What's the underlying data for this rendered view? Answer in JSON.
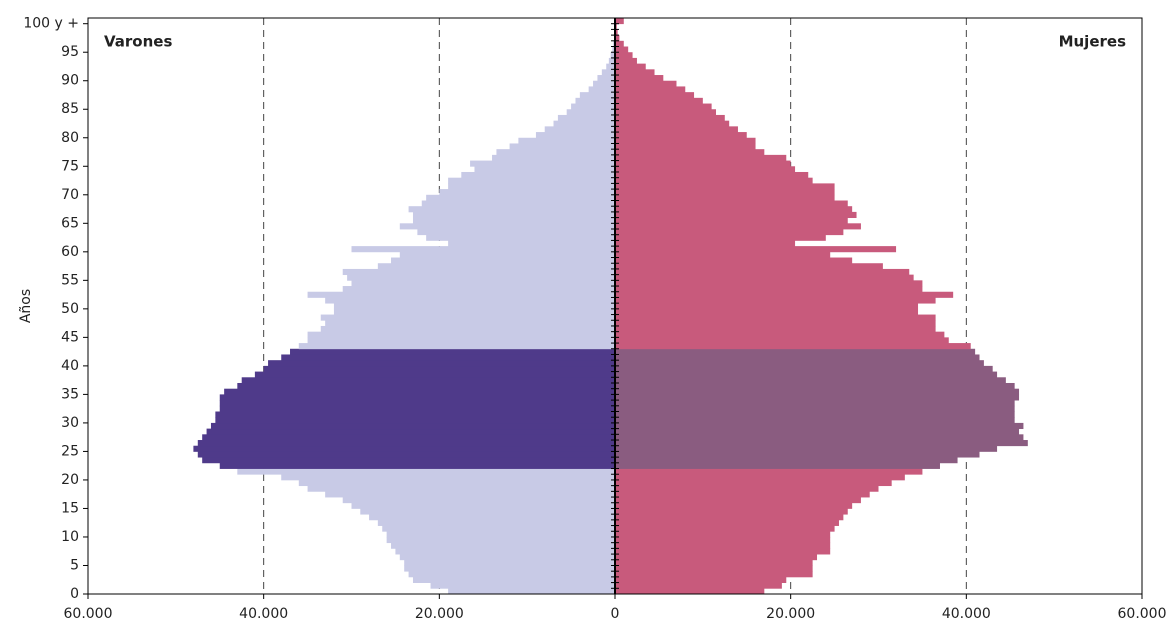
{
  "chart_data": {
    "type": "pyramid",
    "y_label": "Años",
    "y": [
      0,
      1,
      2,
      3,
      4,
      5,
      6,
      7,
      8,
      9,
      10,
      11,
      12,
      13,
      14,
      15,
      16,
      17,
      18,
      19,
      20,
      21,
      22,
      23,
      24,
      25,
      26,
      27,
      28,
      29,
      30,
      31,
      32,
      33,
      34,
      35,
      36,
      37,
      38,
      39,
      40,
      41,
      42,
      43,
      44,
      45,
      46,
      47,
      48,
      49,
      50,
      51,
      52,
      53,
      54,
      55,
      56,
      57,
      58,
      59,
      60,
      61,
      62,
      63,
      64,
      65,
      66,
      67,
      68,
      69,
      70,
      71,
      72,
      73,
      74,
      75,
      76,
      77,
      78,
      79,
      80,
      81,
      82,
      83,
      84,
      85,
      86,
      87,
      88,
      89,
      90,
      91,
      92,
      93,
      94,
      95,
      96,
      97,
      98,
      99,
      100
    ],
    "series": [
      {
        "name": "Varones",
        "side": "left",
        "color": "#c8cae6",
        "highlight_color": "#4f3a8a",
        "values": [
          19000,
          21000,
          23000,
          23500,
          24000,
          24000,
          24500,
          25000,
          25500,
          26000,
          26000,
          26500,
          27000,
          28000,
          29000,
          30000,
          31000,
          33000,
          35000,
          36000,
          38000,
          43000,
          45000,
          47000,
          47500,
          48000,
          47500,
          47000,
          46500,
          46000,
          45500,
          45500,
          45000,
          45000,
          45000,
          44500,
          43000,
          42500,
          41000,
          40000,
          39500,
          38000,
          37000,
          36000,
          35000,
          35000,
          33500,
          33000,
          33500,
          32000,
          32000,
          33000,
          35000,
          31000,
          30000,
          30500,
          31000,
          27000,
          25500,
          24500,
          30000,
          19000,
          21500,
          22500,
          24500,
          23000,
          23000,
          23500,
          22000,
          21500,
          20000,
          19000,
          19000,
          17500,
          16000,
          16500,
          14000,
          13500,
          12000,
          11000,
          9000,
          8000,
          7000,
          6500,
          5500,
          5000,
          4500,
          4000,
          3000,
          2500,
          2000,
          1500,
          1000,
          700,
          500,
          300,
          200,
          100,
          100,
          50,
          100
        ]
      },
      {
        "name": "Mujeres",
        "side": "right",
        "color": "#c85a7c",
        "highlight_color": "#8a5c80",
        "values": [
          17000,
          19000,
          19500,
          22500,
          22500,
          22500,
          23000,
          24500,
          24500,
          24500,
          24500,
          25000,
          25500,
          26000,
          26500,
          27000,
          28000,
          29000,
          30000,
          31500,
          33000,
          35000,
          37000,
          39000,
          41500,
          43500,
          47000,
          46500,
          46000,
          46500,
          45500,
          45500,
          45500,
          45500,
          46000,
          46000,
          45500,
          44500,
          43500,
          43000,
          42000,
          41500,
          41000,
          40500,
          38000,
          37500,
          36500,
          36500,
          36500,
          34500,
          34500,
          36500,
          38500,
          35000,
          35000,
          34000,
          33500,
          30500,
          27000,
          24500,
          32000,
          20500,
          24000,
          26000,
          28000,
          26500,
          27500,
          27000,
          26500,
          25000,
          25000,
          25000,
          22500,
          22000,
          20500,
          20000,
          19500,
          17000,
          16000,
          16000,
          15000,
          14000,
          13000,
          12500,
          11500,
          11000,
          10000,
          9000,
          8000,
          7000,
          5500,
          4500,
          3500,
          2500,
          2000,
          1500,
          1000,
          500,
          300,
          200,
          1000
        ]
      }
    ],
    "highlight": {
      "from": 22,
      "to": 42
    },
    "xlim": [
      -60000,
      60000
    ],
    "xticks": [
      {
        "value": -60000,
        "label": "60.000"
      },
      {
        "value": -40000,
        "label": "40.000"
      },
      {
        "value": -20000,
        "label": "20.000"
      },
      0,
      {
        "value": 20000,
        "label": "20.000"
      },
      {
        "value": 40000,
        "label": "40.000"
      },
      {
        "value": 60000,
        "label": "60.000"
      }
    ],
    "ylim": [
      0,
      101
    ],
    "yticks": [
      0,
      5,
      10,
      15,
      20,
      25,
      30,
      35,
      40,
      45,
      50,
      55,
      60,
      65,
      70,
      75,
      80,
      85,
      90,
      95,
      {
        "value": 100,
        "label": "100 y +"
      }
    ],
    "grid": true
  }
}
